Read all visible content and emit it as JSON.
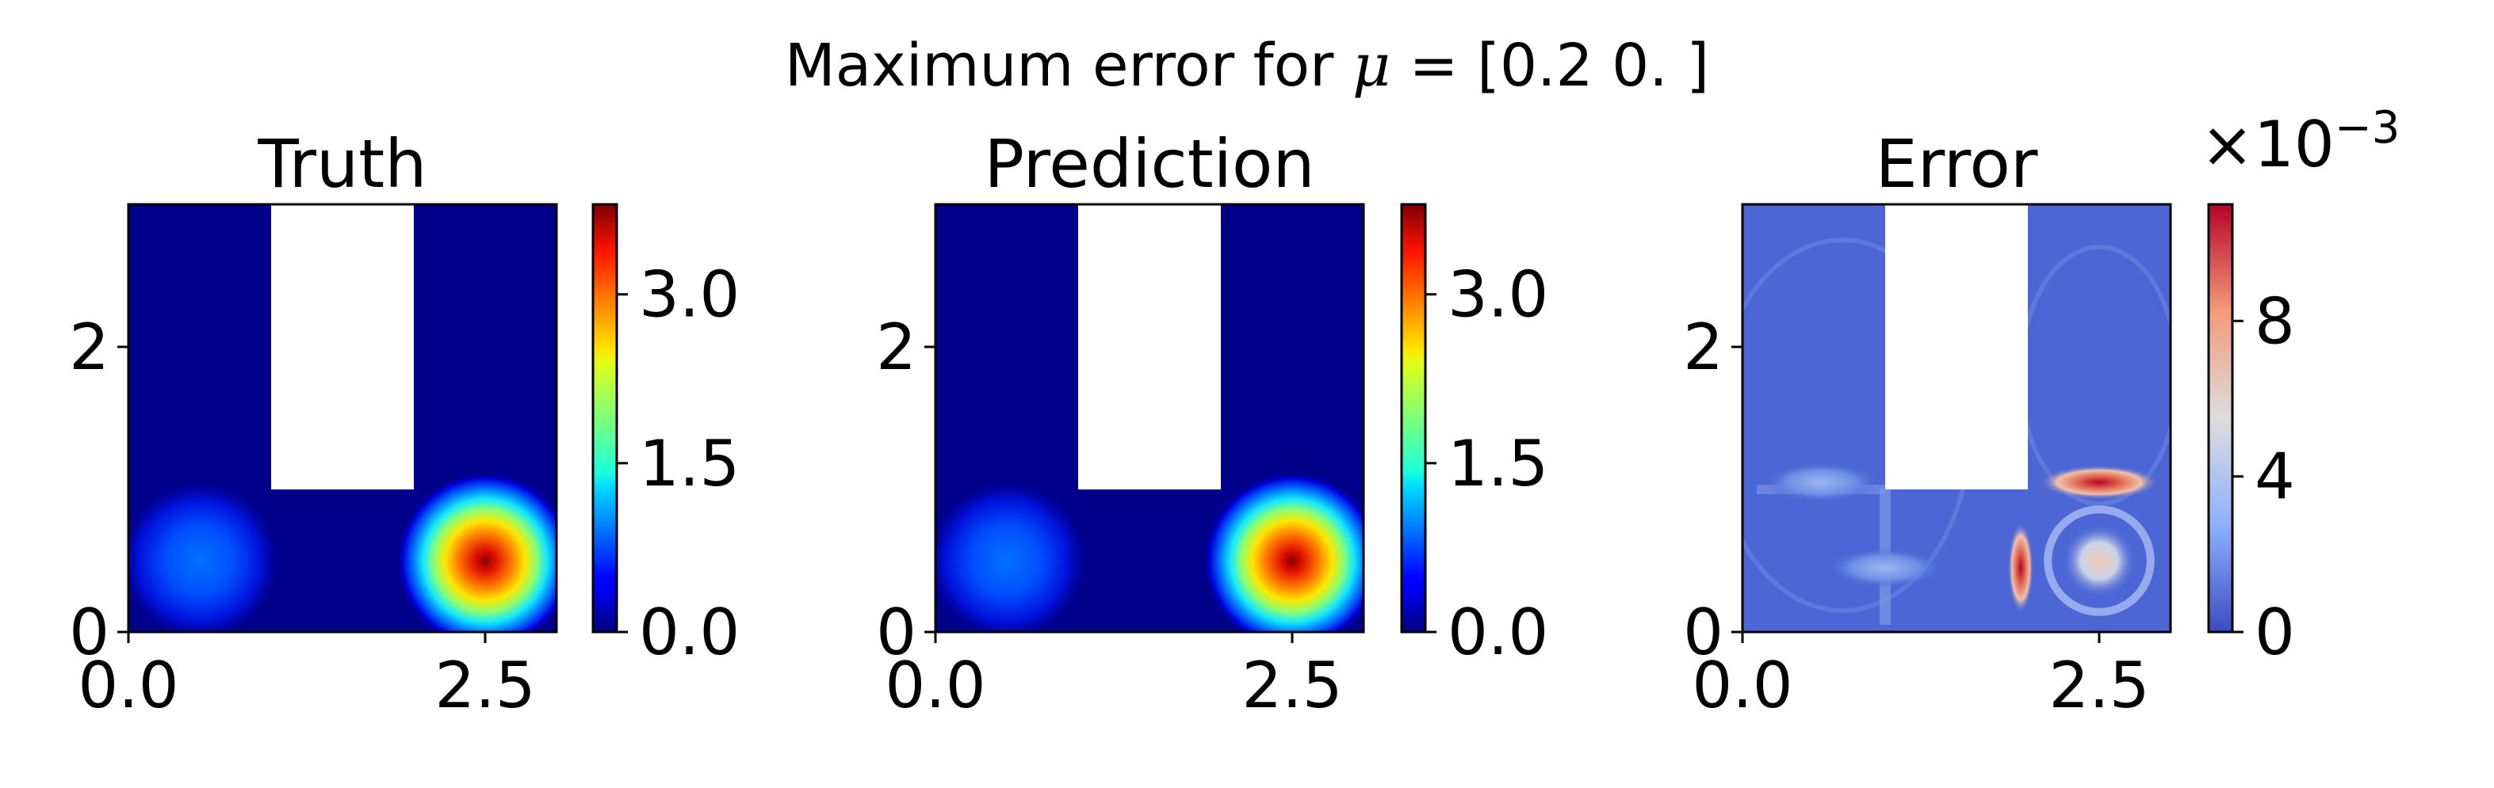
{
  "figure": {
    "suptitle_prefix": "Maximum error for ",
    "suptitle_symbol": "μ",
    "suptitle_suffix": " = [0.2 0. ]"
  },
  "chart_data": [
    {
      "type": "heatmap",
      "title": "Truth",
      "xlim": [
        0,
        3
      ],
      "ylim": [
        0,
        3
      ],
      "xticks": [
        0.0,
        2.5
      ],
      "xtick_labels": [
        "0.0",
        "2.5"
      ],
      "yticks": [
        0,
        2
      ],
      "ytick_labels": [
        "0",
        "2"
      ],
      "masked_region": {
        "x": [
          1,
          2
        ],
        "y": [
          1,
          3
        ]
      },
      "colormap": "jet",
      "colorbar": {
        "range": [
          0,
          3.8
        ],
        "ticks": [
          0.0,
          1.5,
          3.0
        ],
        "tick_labels": [
          "0.0",
          "1.5",
          "3.0"
        ],
        "multiplier": ""
      },
      "sources": [
        {
          "x": 0.5,
          "y": 0.5,
          "peak": 0.6
        },
        {
          "x": 2.5,
          "y": 0.5,
          "peak": 3.8
        }
      ]
    },
    {
      "type": "heatmap",
      "title": "Prediction",
      "xlim": [
        0,
        3
      ],
      "ylim": [
        0,
        3
      ],
      "xticks": [
        0.0,
        2.5
      ],
      "xtick_labels": [
        "0.0",
        "2.5"
      ],
      "yticks": [
        0,
        2
      ],
      "ytick_labels": [
        "0",
        "2"
      ],
      "masked_region": {
        "x": [
          1,
          2
        ],
        "y": [
          1,
          3
        ]
      },
      "colormap": "jet",
      "colorbar": {
        "range": [
          0,
          3.8
        ],
        "ticks": [
          0.0,
          1.5,
          3.0
        ],
        "tick_labels": [
          "0.0",
          "1.5",
          "3.0"
        ],
        "multiplier": ""
      },
      "sources": [
        {
          "x": 0.5,
          "y": 0.5,
          "peak": 0.6
        },
        {
          "x": 2.5,
          "y": 0.5,
          "peak": 3.8
        }
      ]
    },
    {
      "type": "heatmap",
      "title": "Error",
      "xlim": [
        0,
        3
      ],
      "ylim": [
        0,
        3
      ],
      "xticks": [
        0.0,
        2.5
      ],
      "xtick_labels": [
        "0.0",
        "2.5"
      ],
      "yticks": [
        0,
        2
      ],
      "ytick_labels": [
        "0",
        "2"
      ],
      "masked_region": {
        "x": [
          1,
          2
        ],
        "y": [
          1,
          3
        ]
      },
      "colormap": "coolwarm",
      "colorbar": {
        "range": [
          0,
          11
        ],
        "ticks": [
          0,
          4,
          8
        ],
        "tick_labels": [
          "0",
          "4",
          "8"
        ],
        "multiplier_base": "×10",
        "multiplier_exponent": "−3"
      },
      "error_features": [
        {
          "x": 1.95,
          "y": 0.45,
          "peak": 11
        },
        {
          "x": 2.5,
          "y": 0.5,
          "peak": 5
        },
        {
          "x": 2.5,
          "y": 1.05,
          "peak": 8
        },
        {
          "x": 0.55,
          "y": 1.05,
          "peak": 1.5
        },
        {
          "x": 1.0,
          "y": 0.45,
          "peak": 1.2
        }
      ]
    }
  ]
}
